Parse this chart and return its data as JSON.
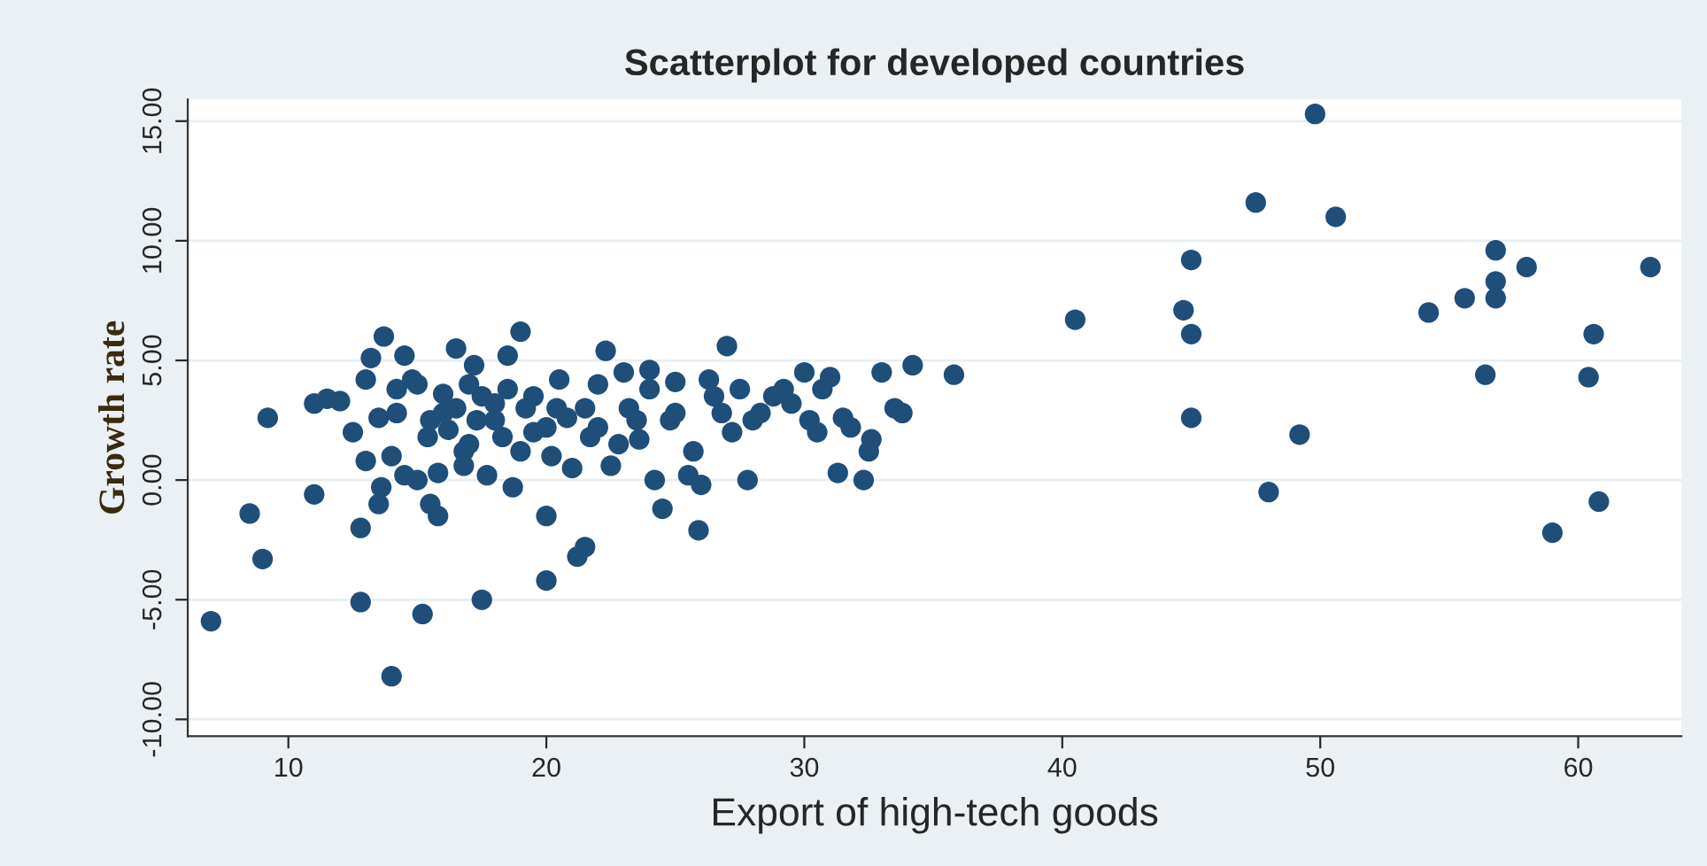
{
  "chart_data": {
    "type": "scatter",
    "title": "Scatterplot for developed countries",
    "xlabel": "Export of high-tech goods",
    "ylabel": "Growth rate",
    "xlim": [
      6.1,
      64
    ],
    "xticks": [
      10,
      20,
      30,
      40,
      50,
      60
    ],
    "ylim": [
      -10.7,
      15.9
    ],
    "yticks": [
      {
        "value": -10,
        "label": "-10.00"
      },
      {
        "value": -5,
        "label": "-5.00"
      },
      {
        "value": 0,
        "label": "0.00"
      },
      {
        "value": 5,
        "label": "5.00"
      },
      {
        "value": 10,
        "label": "10.00"
      },
      {
        "value": 15,
        "label": "15.00"
      }
    ],
    "grid": "y",
    "marker": "circle",
    "series": [
      {
        "color": "#1f4e79",
        "x": [
          7,
          8.5,
          9,
          9.2,
          11,
          11,
          11.5,
          12.5,
          12.8,
          12.8,
          13,
          13.2,
          13.5,
          13.6,
          13.7,
          14,
          14,
          14.2,
          14.5,
          14.8,
          15,
          15.2,
          15.4,
          15.5,
          15.8,
          16,
          16.2,
          16.5,
          16.8,
          17,
          17.3,
          17.5,
          17.7,
          18,
          18.3,
          18.5,
          18.7,
          19,
          19.2,
          19.5,
          20,
          20,
          20.2,
          20.4,
          20.5,
          21,
          21.2,
          21.5,
          21.7,
          22,
          22.3,
          22.5,
          23,
          23.2,
          23.6,
          24,
          24.2,
          24.5,
          24.8,
          25,
          25.5,
          25.7,
          25.9,
          26,
          26.3,
          26.8,
          27,
          27.2,
          27.5,
          27.8,
          28.3,
          28.8,
          29.2,
          30,
          30.2,
          30.5,
          30.7,
          31,
          31.3,
          31.5,
          31.8,
          32.3,
          32.5,
          32.6,
          33,
          33.5,
          33.8,
          34.2,
          35.8,
          12,
          13.5,
          14.2,
          15,
          15.5,
          16,
          16.5,
          17,
          17.5,
          18,
          18.5,
          19,
          19.5,
          20,
          20.8,
          21.5,
          22,
          22.8,
          23.5,
          24,
          25,
          26.5,
          28,
          29.5,
          15.8,
          16.8,
          17.2,
          13,
          14.5,
          40.5,
          44.7,
          45,
          45,
          45,
          47.5,
          48,
          49.2,
          49.8,
          50.6,
          54.2,
          55.6,
          56.4,
          56.8,
          56.8,
          56.8,
          58,
          59,
          60.4,
          60.6,
          60.8,
          62.8
        ],
        "values": [
          -5.9,
          -1.4,
          -3.3,
          2.6,
          -0.6,
          3.2,
          3.4,
          2.0,
          -2.0,
          -5.1,
          4.2,
          5.1,
          -1.0,
          -0.3,
          6.0,
          -8.2,
          1.0,
          2.8,
          5.2,
          4.2,
          0.0,
          -5.6,
          1.8,
          -1.0,
          -1.5,
          3.6,
          2.1,
          5.5,
          1.2,
          4.0,
          2.5,
          -5.0,
          0.2,
          3.2,
          1.8,
          5.2,
          -0.3,
          6.2,
          3.0,
          2.0,
          -4.2,
          -1.5,
          1.0,
          3.0,
          4.2,
          0.5,
          -3.2,
          -2.8,
          1.8,
          4.0,
          5.4,
          0.6,
          4.5,
          3.0,
          1.7,
          4.6,
          0.0,
          -1.2,
          2.5,
          4.1,
          0.2,
          1.2,
          -2.1,
          -0.2,
          4.2,
          2.8,
          5.6,
          2.0,
          3.8,
          0.0,
          2.8,
          3.5,
          3.8,
          4.5,
          2.5,
          2.0,
          3.8,
          4.3,
          0.3,
          2.6,
          2.2,
          0.0,
          1.2,
          1.7,
          4.5,
          3.0,
          2.8,
          4.8,
          4.4,
          3.3,
          2.6,
          3.8,
          4.0,
          2.5,
          2.8,
          3.0,
          1.5,
          3.5,
          2.5,
          3.8,
          1.2,
          3.5,
          2.2,
          2.6,
          3.0,
          2.2,
          1.5,
          2.5,
          3.8,
          2.8,
          3.5,
          2.5,
          3.2,
          0.3,
          0.6,
          4.8,
          0.8,
          0.2,
          6.7,
          7.1,
          9.2,
          6.1,
          2.6,
          11.6,
          -0.5,
          1.9,
          15.3,
          11.0,
          7.0,
          7.6,
          4.4,
          9.6,
          8.3,
          7.6,
          8.9,
          -2.2,
          4.3,
          6.1,
          -0.9,
          8.9
        ]
      }
    ]
  }
}
